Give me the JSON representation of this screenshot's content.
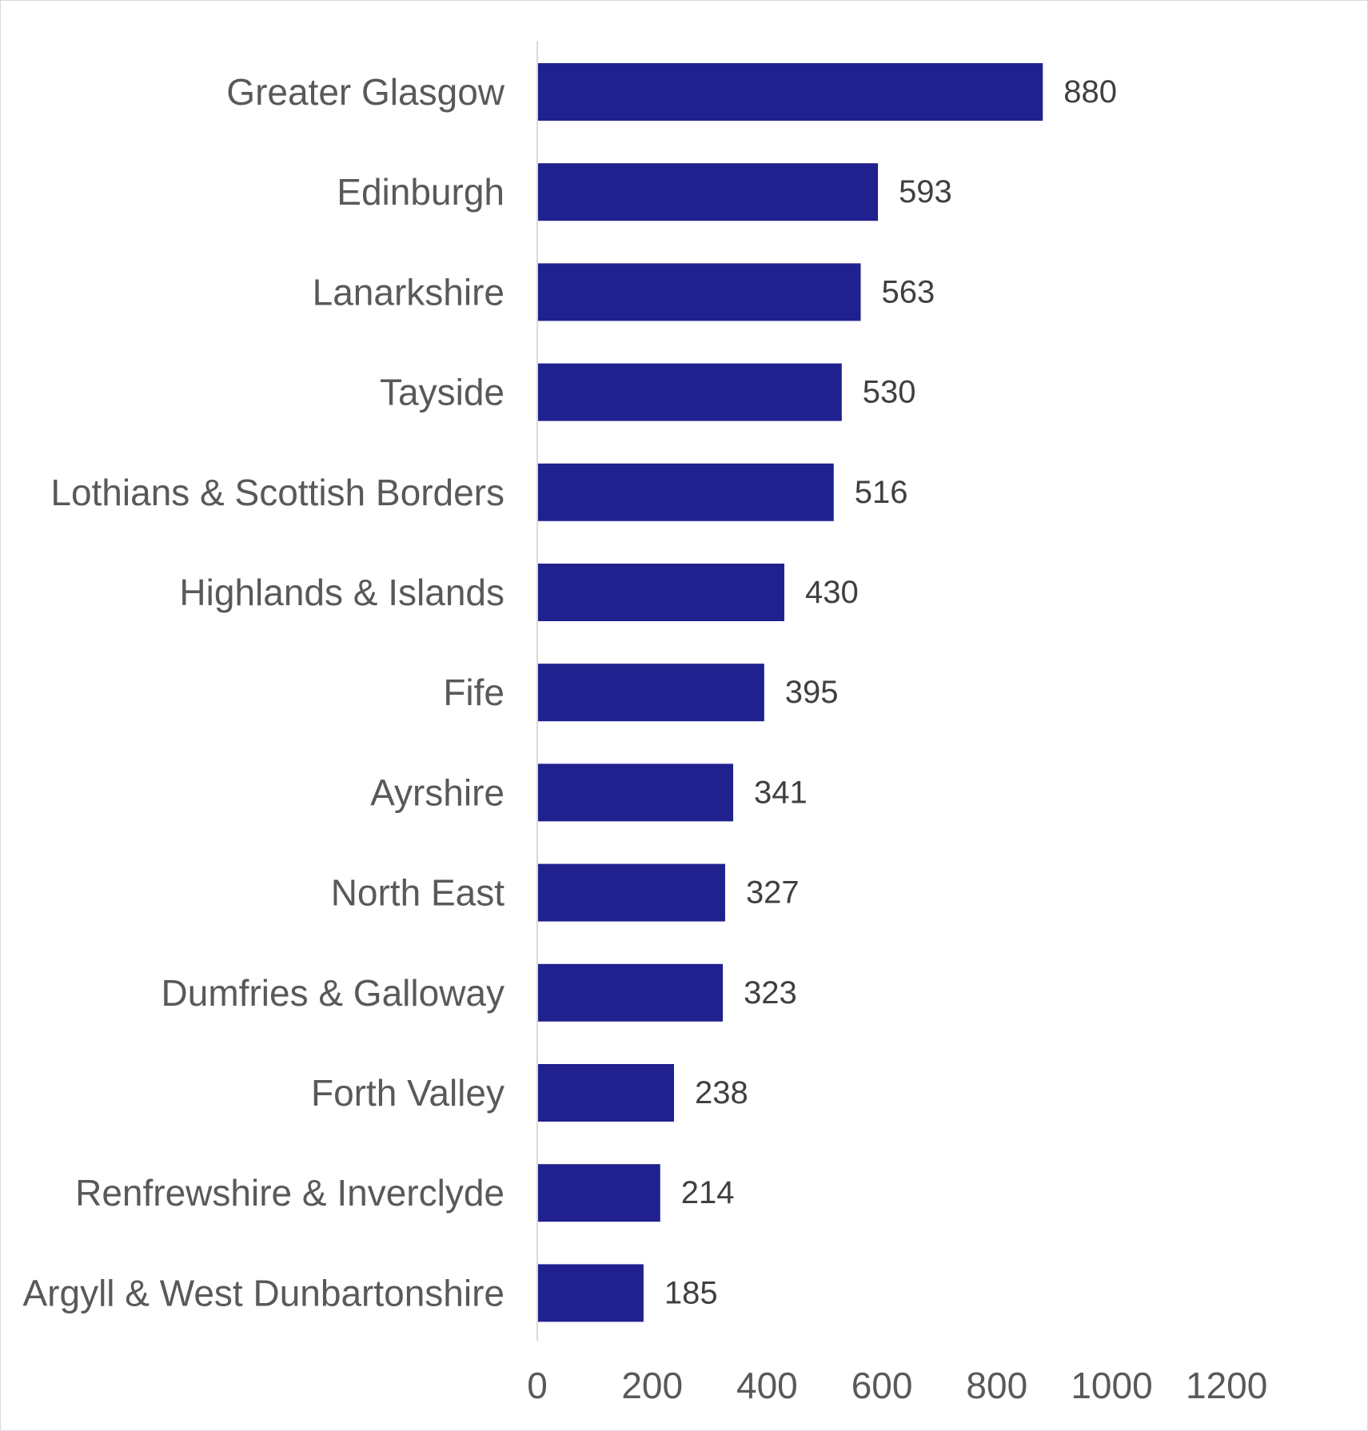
{
  "chart_data": {
    "type": "bar",
    "orientation": "horizontal",
    "categories": [
      "Greater Glasgow",
      "Edinburgh",
      "Lanarkshire",
      "Tayside",
      "Lothians & Scottish Borders",
      "Highlands & Islands",
      "Fife",
      "Ayrshire",
      "North East",
      "Dumfries & Galloway",
      "Forth Valley",
      "Renfrewshire & Inverclyde",
      "Argyll & West Dunbartonshire"
    ],
    "values": [
      880,
      593,
      563,
      530,
      516,
      430,
      395,
      341,
      327,
      323,
      238,
      214,
      185
    ],
    "data_labels": [
      "880",
      "593",
      "563",
      "530",
      "516",
      "430",
      "395",
      "341",
      "327",
      "323",
      "238",
      "214",
      "185"
    ],
    "title": "",
    "xlabel": "",
    "ylabel": "",
    "xlim": [
      0,
      1200
    ],
    "xticks": [
      0,
      200,
      400,
      600,
      800,
      1000,
      1200
    ],
    "xtick_labels": [
      "0",
      "200",
      "400",
      "600",
      "800",
      "1000",
      "1200"
    ],
    "grid": false,
    "legend": "none",
    "colors": {
      "bar": "#20208e",
      "axis": "#d9d9d9",
      "category_text": "#595959",
      "data_label_text": "#404040"
    }
  }
}
